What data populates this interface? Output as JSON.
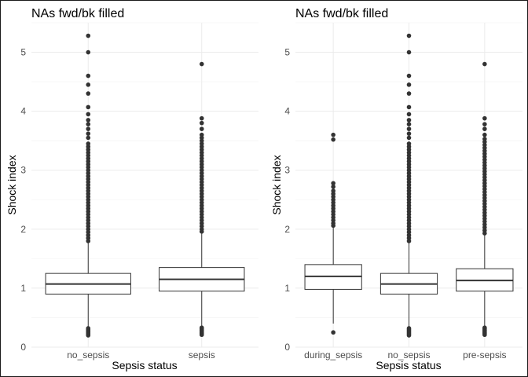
{
  "chart_data": [
    {
      "type": "box",
      "title": "NAs fwd/bk filled",
      "xlabel": "Sepsis status",
      "ylabel": "Shock index",
      "ylim": [
        0,
        5.5
      ],
      "yticks": [
        0,
        1,
        2,
        3,
        4,
        5
      ],
      "ytick_labels": [
        "0",
        "1",
        "2",
        "3",
        "4",
        "5"
      ],
      "grid": true,
      "categories": [
        "no_sepsis",
        "sepsis"
      ],
      "boxes": [
        {
          "category": "no_sepsis",
          "min": 0.33,
          "q1": 0.9,
          "median": 1.07,
          "q3": 1.25,
          "max": 1.77,
          "outliers": [
            0.2,
            0.22,
            0.24,
            0.26,
            0.28,
            0.3,
            0.32,
            1.8,
            1.85,
            1.9,
            1.95,
            2.0,
            2.05,
            2.1,
            2.15,
            2.2,
            2.25,
            2.3,
            2.35,
            2.4,
            2.45,
            2.5,
            2.55,
            2.6,
            2.65,
            2.7,
            2.75,
            2.8,
            2.85,
            2.9,
            2.95,
            3.0,
            3.05,
            3.1,
            3.15,
            3.2,
            3.25,
            3.3,
            3.35,
            3.4,
            3.45,
            3.55,
            3.62,
            3.7,
            3.78,
            3.85,
            3.95,
            4.07,
            4.3,
            4.45,
            4.6,
            5.0,
            5.28
          ]
        },
        {
          "category": "sepsis",
          "min": 0.35,
          "q1": 0.95,
          "median": 1.15,
          "q3": 1.35,
          "max": 1.93,
          "outliers": [
            0.21,
            0.23,
            0.25,
            0.27,
            0.29,
            0.31,
            0.33,
            1.96,
            2.0,
            2.05,
            2.1,
            2.15,
            2.2,
            2.25,
            2.3,
            2.35,
            2.4,
            2.45,
            2.5,
            2.55,
            2.6,
            2.65,
            2.7,
            2.75,
            2.8,
            2.85,
            2.9,
            2.95,
            3.0,
            3.05,
            3.1,
            3.15,
            3.2,
            3.25,
            3.3,
            3.35,
            3.4,
            3.45,
            3.5,
            3.55,
            3.6,
            3.7,
            3.8,
            3.88,
            4.8
          ]
        }
      ]
    },
    {
      "type": "box",
      "title": "NAs fwd/bk filled",
      "xlabel": "Sepsis status",
      "ylabel": "Shock index",
      "ylim": [
        0,
        5.5
      ],
      "yticks": [
        0,
        1,
        2,
        3,
        4,
        5
      ],
      "ytick_labels": [
        "0",
        "1",
        "2",
        "3",
        "4",
        "5"
      ],
      "grid": true,
      "categories": [
        "during_sepsis",
        "no_sepsis",
        "pre-sepsis"
      ],
      "boxes": [
        {
          "category": "during_sepsis",
          "min": 0.4,
          "q1": 0.98,
          "median": 1.2,
          "q3": 1.4,
          "max": 2.03,
          "outliers": [
            0.25,
            2.06,
            2.1,
            2.15,
            2.2,
            2.25,
            2.3,
            2.35,
            2.4,
            2.45,
            2.5,
            2.55,
            2.6,
            2.65,
            2.72,
            2.78,
            3.52,
            3.6
          ]
        },
        {
          "category": "no_sepsis",
          "min": 0.33,
          "q1": 0.9,
          "median": 1.07,
          "q3": 1.25,
          "max": 1.77,
          "outliers": [
            0.2,
            0.22,
            0.24,
            0.26,
            0.28,
            0.3,
            0.32,
            1.8,
            1.85,
            1.9,
            1.95,
            2.0,
            2.05,
            2.1,
            2.15,
            2.2,
            2.25,
            2.3,
            2.35,
            2.4,
            2.45,
            2.5,
            2.55,
            2.6,
            2.65,
            2.7,
            2.75,
            2.8,
            2.85,
            2.9,
            2.95,
            3.0,
            3.05,
            3.1,
            3.15,
            3.2,
            3.25,
            3.3,
            3.35,
            3.4,
            3.45,
            3.55,
            3.62,
            3.7,
            3.78,
            3.85,
            3.95,
            4.07,
            4.3,
            4.45,
            4.6,
            5.0,
            5.28
          ]
        },
        {
          "category": "pre-sepsis",
          "min": 0.35,
          "q1": 0.95,
          "median": 1.13,
          "q3": 1.33,
          "max": 1.9,
          "outliers": [
            0.21,
            0.23,
            0.25,
            0.27,
            0.29,
            0.31,
            0.33,
            1.93,
            1.98,
            2.03,
            2.08,
            2.13,
            2.18,
            2.23,
            2.28,
            2.33,
            2.38,
            2.43,
            2.48,
            2.53,
            2.58,
            2.63,
            2.68,
            2.73,
            2.78,
            2.83,
            2.88,
            2.93,
            2.98,
            3.03,
            3.08,
            3.13,
            3.18,
            3.23,
            3.28,
            3.33,
            3.38,
            3.43,
            3.48,
            3.53,
            3.6,
            3.7,
            3.78,
            3.88,
            4.8
          ]
        }
      ]
    }
  ]
}
